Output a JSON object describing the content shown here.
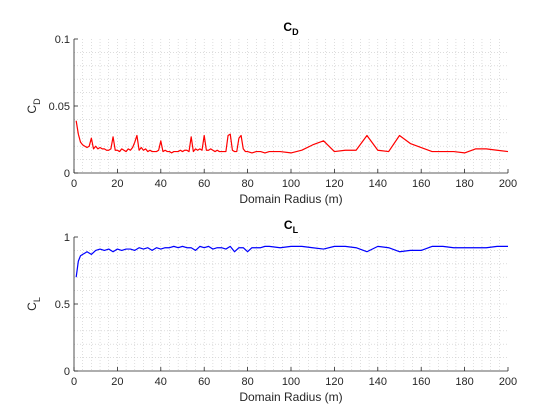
{
  "chart_data": [
    {
      "type": "line",
      "title": "C",
      "title_sub": "D",
      "xlabel": "Domain Radius (m)",
      "ylabel": "C",
      "ylabel_sub": "D",
      "xlim": [
        0,
        200
      ],
      "ylim": [
        0,
        0.1
      ],
      "xticks": [
        "0",
        "20",
        "40",
        "60",
        "80",
        "100",
        "120",
        "140",
        "160",
        "180",
        "200"
      ],
      "yticks": [
        "0",
        "0.05",
        "0.1"
      ],
      "grid": "minor-dotted",
      "series": [
        {
          "color": "#ff0000",
          "x": [
            1,
            2,
            3,
            4,
            5,
            6,
            7,
            8,
            9,
            10,
            11,
            12,
            13,
            14,
            15,
            16,
            17,
            18,
            19,
            20,
            21,
            22,
            23,
            24,
            25,
            26,
            27,
            28,
            29,
            30,
            31,
            32,
            33,
            34,
            35,
            36,
            37,
            38,
            39,
            40,
            41,
            42,
            43,
            44,
            45,
            46,
            47,
            48,
            49,
            50,
            51,
            52,
            53,
            54,
            55,
            56,
            57,
            58,
            59,
            60,
            61,
            62,
            63,
            64,
            65,
            66,
            67,
            68,
            69,
            70,
            71,
            72,
            73,
            74,
            75,
            76,
            77,
            78,
            79,
            80,
            82,
            84,
            86,
            88,
            90,
            92,
            95,
            100,
            105,
            110,
            115,
            120,
            125,
            130,
            135,
            140,
            145,
            150,
            155,
            160,
            165,
            170,
            175,
            180,
            185,
            190,
            195,
            200
          ],
          "y": [
            0.039,
            0.029,
            0.023,
            0.021,
            0.02,
            0.019,
            0.02,
            0.026,
            0.018,
            0.02,
            0.018,
            0.019,
            0.018,
            0.018,
            0.017,
            0.017,
            0.018,
            0.027,
            0.017,
            0.017,
            0.016,
            0.018,
            0.017,
            0.016,
            0.018,
            0.017,
            0.019,
            0.023,
            0.028,
            0.017,
            0.019,
            0.017,
            0.018,
            0.016,
            0.017,
            0.016,
            0.016,
            0.016,
            0.017,
            0.024,
            0.016,
            0.017,
            0.016,
            0.016,
            0.015,
            0.016,
            0.016,
            0.016,
            0.017,
            0.016,
            0.017,
            0.017,
            0.016,
            0.027,
            0.016,
            0.018,
            0.017,
            0.018,
            0.017,
            0.028,
            0.017,
            0.017,
            0.018,
            0.017,
            0.016,
            0.017,
            0.016,
            0.016,
            0.016,
            0.016,
            0.028,
            0.029,
            0.017,
            0.016,
            0.016,
            0.026,
            0.028,
            0.018,
            0.016,
            0.016,
            0.015,
            0.016,
            0.016,
            0.015,
            0.016,
            0.016,
            0.016,
            0.015,
            0.017,
            0.021,
            0.024,
            0.016,
            0.017,
            0.017,
            0.028,
            0.017,
            0.016,
            0.028,
            0.022,
            0.019,
            0.016,
            0.016,
            0.016,
            0.015,
            0.018,
            0.018,
            0.017,
            0.016
          ]
        }
      ]
    },
    {
      "type": "line",
      "title": "C",
      "title_sub": "L",
      "xlabel": "Domain Radius (m)",
      "ylabel": "C",
      "ylabel_sub": "L",
      "xlim": [
        0,
        200
      ],
      "ylim": [
        0,
        1
      ],
      "xticks": [
        "0",
        "20",
        "40",
        "60",
        "80",
        "100",
        "120",
        "140",
        "160",
        "180",
        "200"
      ],
      "yticks": [
        "0",
        "0.5",
        "1"
      ],
      "grid": "minor-dotted",
      "series": [
        {
          "color": "#0000ff",
          "x": [
            1,
            2,
            3,
            4,
            5,
            6,
            8,
            10,
            12,
            14,
            16,
            18,
            20,
            22,
            24,
            26,
            28,
            30,
            32,
            34,
            36,
            38,
            40,
            42,
            44,
            46,
            48,
            50,
            52,
            54,
            56,
            58,
            60,
            62,
            64,
            66,
            68,
            70,
            72,
            74,
            76,
            78,
            80,
            82,
            84,
            86,
            88,
            90,
            95,
            100,
            105,
            110,
            115,
            120,
            125,
            130,
            135,
            140,
            145,
            150,
            155,
            160,
            165,
            170,
            175,
            180,
            185,
            190,
            195,
            200
          ],
          "y": [
            0.7,
            0.82,
            0.86,
            0.87,
            0.88,
            0.89,
            0.87,
            0.9,
            0.91,
            0.9,
            0.91,
            0.89,
            0.91,
            0.9,
            0.91,
            0.91,
            0.9,
            0.92,
            0.91,
            0.92,
            0.9,
            0.92,
            0.91,
            0.92,
            0.92,
            0.93,
            0.92,
            0.93,
            0.92,
            0.92,
            0.9,
            0.93,
            0.92,
            0.93,
            0.91,
            0.92,
            0.92,
            0.91,
            0.93,
            0.89,
            0.92,
            0.92,
            0.89,
            0.92,
            0.92,
            0.92,
            0.93,
            0.93,
            0.92,
            0.93,
            0.93,
            0.92,
            0.91,
            0.93,
            0.93,
            0.92,
            0.89,
            0.93,
            0.92,
            0.89,
            0.9,
            0.9,
            0.93,
            0.93,
            0.92,
            0.92,
            0.92,
            0.92,
            0.93,
            0.93
          ]
        }
      ]
    }
  ]
}
